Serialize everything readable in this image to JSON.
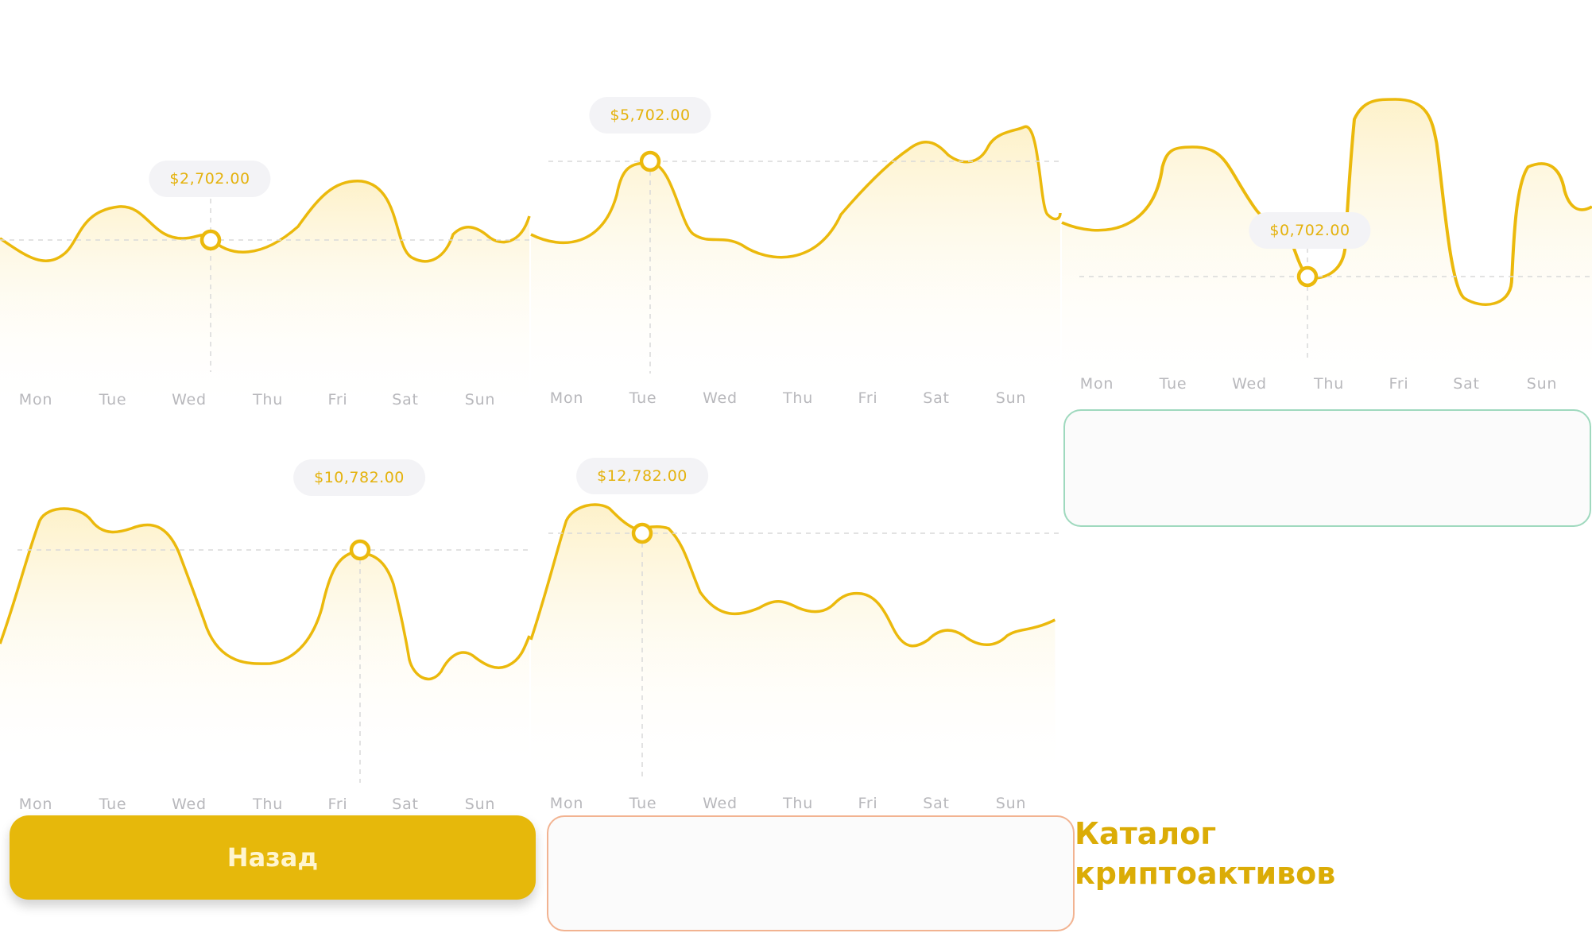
{
  "days": [
    "Mon",
    "Tue",
    "Wed",
    "Thu",
    "Fri",
    "Sat",
    "Sun"
  ],
  "colors": {
    "accent": "#e4b20d",
    "line": "#ebb90c",
    "tooltip_bg": "#f3f3f6",
    "axis_text": "#b8b8bc"
  },
  "charts": [
    {
      "tooltip": "$2,702.00",
      "selected_day": "Wed"
    },
    {
      "tooltip": "$5,702.00",
      "selected_day": "Tue"
    },
    {
      "tooltip": "$0,702.00",
      "selected_day": "Thu"
    },
    {
      "tooltip": "$10,782.00",
      "selected_day": "Fri"
    },
    {
      "tooltip": "$12,782.00",
      "selected_day": "Tue"
    }
  ],
  "back_button": {
    "label": "Назад"
  },
  "catalog": {
    "title_line1": "Каталог",
    "title_line2": "криптоактивов"
  }
}
